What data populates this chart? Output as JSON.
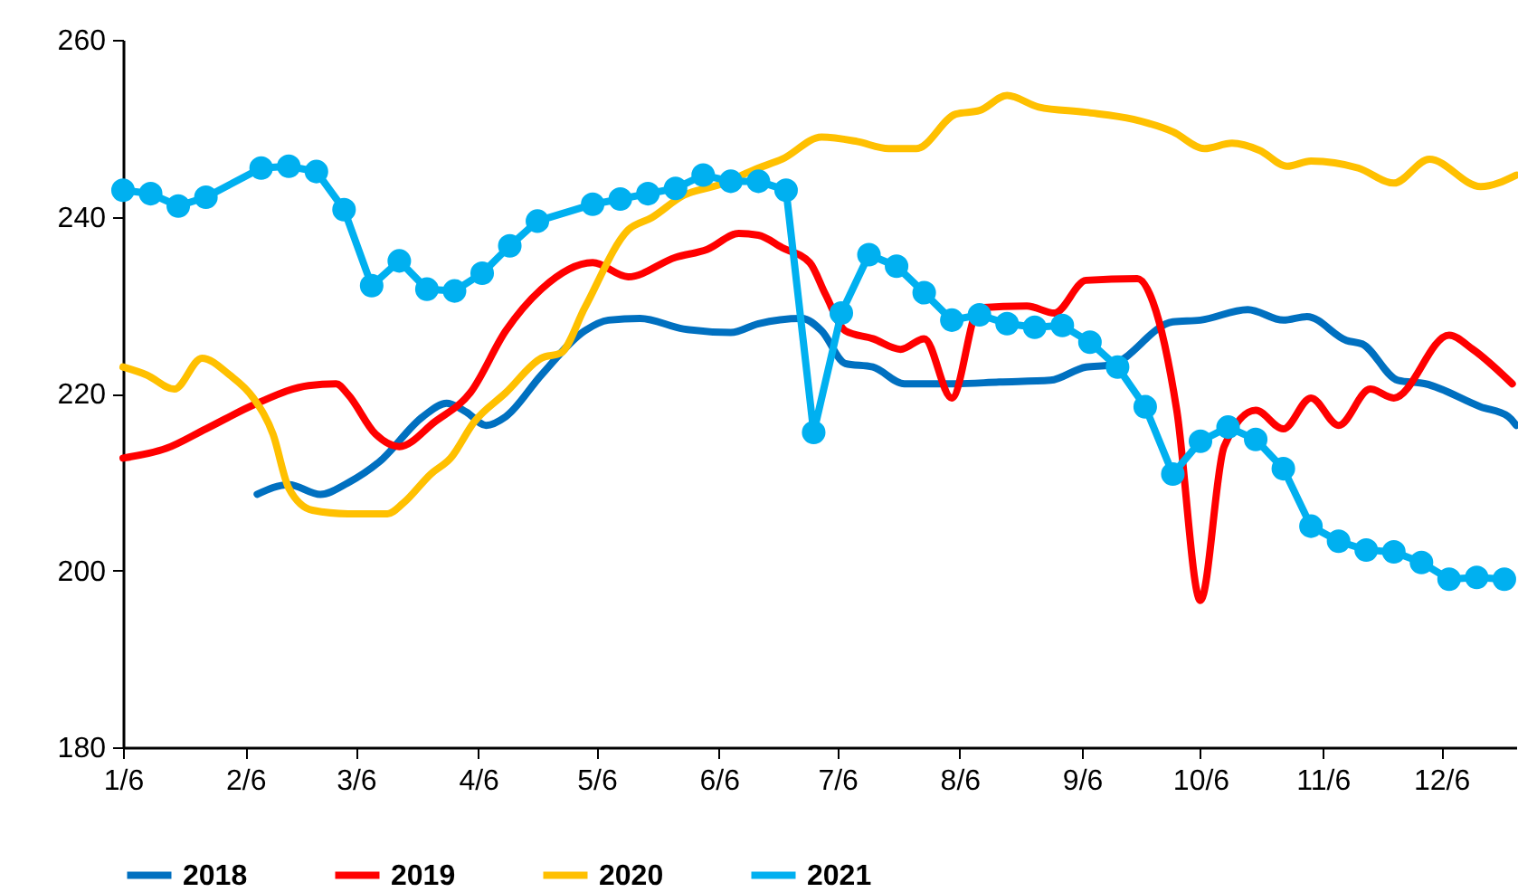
{
  "chart_data": {
    "type": "line",
    "xlim": [
      "--01-06",
      "--12-25"
    ],
    "ylim": [
      180,
      260
    ],
    "yticks": [
      180,
      200,
      220,
      240,
      260
    ],
    "xticks": [
      {
        "value": "--01-06",
        "label": "1/6"
      },
      {
        "value": "--02-06",
        "label": "2/6"
      },
      {
        "value": "--03-06",
        "label": "3/6"
      },
      {
        "value": "--04-06",
        "label": "4/6"
      },
      {
        "value": "--05-06",
        "label": "5/6"
      },
      {
        "value": "--06-06",
        "label": "6/6"
      },
      {
        "value": "--07-06",
        "label": "7/6"
      },
      {
        "value": "--08-06",
        "label": "8/6"
      },
      {
        "value": "--09-06",
        "label": "9/6"
      },
      {
        "value": "--10-06",
        "label": "10/6"
      },
      {
        "value": "--11-06",
        "label": "11/6"
      },
      {
        "value": "--12-06",
        "label": "12/6"
      }
    ],
    "legend": "bottom",
    "grid": false,
    "series": [
      {
        "name": "2018",
        "color": "#0070c0",
        "marker": "none",
        "x": [
          "--02-09",
          "--02-17",
          "--02-25",
          "--03-04",
          "--03-12",
          "--03-23",
          "--03-29",
          "--04-03",
          "--04-08",
          "--04-13",
          "--04-22",
          "--05-03",
          "--05-09",
          "--05-17",
          "--05-28",
          "--06-09",
          "--06-16",
          "--06-27",
          "--07-02",
          "--07-08",
          "--07-15",
          "--07-23",
          "--08-05",
          "--08-16",
          "--08-29",
          "--09-07",
          "--09-13",
          "--09-29",
          "--10-06",
          "--10-18",
          "--10-27",
          "--11-02",
          "--11-12",
          "--11-16",
          "--11-25",
          "--12-02",
          "--12-16",
          "--12-23",
          "--12-25"
        ],
        "values": [
          208.6,
          209.7,
          208.6,
          209.9,
          212.3,
          217.4,
          218.9,
          217.9,
          216.4,
          217.4,
          222.1,
          227.1,
          228.3,
          228.5,
          227.3,
          226.9,
          227.9,
          228.5,
          227.1,
          223.4,
          223.0,
          221.1,
          221.1,
          221.3,
          221.5,
          223.0,
          223.2,
          228.1,
          228.3,
          229.5,
          228.3,
          228.7,
          226.0,
          225.6,
          221.5,
          221.1,
          218.5,
          217.4,
          216.4
        ]
      },
      {
        "name": "2019",
        "color": "#ff0000",
        "marker": "none",
        "x": [
          "--01-06",
          "--01-17",
          "--01-27",
          "--02-09",
          "--02-22",
          "--03-01",
          "--03-04",
          "--03-11",
          "--03-17",
          "--03-26",
          "--04-04",
          "--04-13",
          "--04-22",
          "--05-05",
          "--05-14",
          "--05-26",
          "--06-03",
          "--06-11",
          "--06-16",
          "--06-22",
          "--06-29",
          "--07-03",
          "--07-08",
          "--07-15",
          "--07-22",
          "--07-28",
          "--08-04",
          "--08-11",
          "--08-23",
          "--08-30",
          "--09-07",
          "--09-20",
          "--09-24",
          "--09-30",
          "--10-06",
          "--10-12",
          "--10-20",
          "--10-27",
          "--11-03",
          "--11-10",
          "--11-18",
          "--11-24",
          "--12-08",
          "--12-14",
          "--12-24"
        ],
        "values": [
          212.7,
          213.8,
          216.0,
          218.9,
          220.9,
          221.1,
          219.9,
          215.4,
          214.0,
          216.8,
          220.1,
          227.1,
          231.8,
          234.8,
          233.2,
          235.4,
          236.3,
          238.1,
          237.9,
          236.5,
          234.8,
          231.2,
          227.1,
          226.2,
          225.0,
          226.2,
          219.5,
          229.7,
          229.9,
          229.1,
          232.8,
          233.0,
          230.3,
          218.1,
          196.6,
          214.0,
          218.1,
          216.0,
          219.5,
          216.4,
          220.5,
          219.5,
          226.6,
          225.0,
          221.1
        ]
      },
      {
        "name": "2020",
        "color": "#ffc000",
        "marker": "none",
        "x": [
          "--01-06",
          "--01-12",
          "--01-19",
          "--01-26",
          "--02-02",
          "--02-08",
          "--02-13",
          "--02-17",
          "--02-23",
          "--03-04",
          "--03-14",
          "--03-18",
          "--03-25",
          "--03-30",
          "--04-05",
          "--04-13",
          "--04-22",
          "--04-27",
          "--05-03",
          "--05-14",
          "--05-20",
          "--05-28",
          "--06-06",
          "--06-16",
          "--06-22",
          "--07-02",
          "--07-11",
          "--07-19",
          "--07-26",
          "--08-05",
          "--08-11",
          "--08-18",
          "--08-26",
          "--09-07",
          "--09-19",
          "--09-29",
          "--10-07",
          "--10-14",
          "--10-21",
          "--10-28",
          "--11-03",
          "--11-15",
          "--11-24",
          "--12-03",
          "--12-16",
          "--12-25"
        ],
        "values": [
          223.0,
          222.1,
          220.5,
          224.0,
          222.1,
          219.5,
          215.4,
          209.3,
          206.8,
          206.4,
          206.4,
          207.6,
          210.9,
          212.7,
          216.8,
          220.1,
          224.0,
          224.6,
          229.7,
          238.5,
          239.9,
          242.4,
          243.6,
          245.5,
          246.5,
          249.0,
          248.5,
          247.7,
          247.7,
          251.6,
          252.0,
          253.7,
          252.4,
          251.8,
          251.0,
          249.6,
          247.7,
          248.3,
          247.5,
          245.7,
          246.3,
          245.5,
          243.8,
          246.5,
          243.4,
          244.7
        ]
      },
      {
        "name": "2021",
        "color": "#00b0f0",
        "marker": "circle",
        "x": [
          "--01-06",
          "--01-13",
          "--01-20",
          "--01-27",
          "--02-10",
          "--02-17",
          "--02-24",
          "--03-03",
          "--03-10",
          "--03-17",
          "--03-24",
          "--03-31",
          "--04-07",
          "--04-14",
          "--04-21",
          "--05-05",
          "--05-12",
          "--05-19",
          "--05-26",
          "--06-02",
          "--06-09",
          "--06-16",
          "--06-23",
          "--06-30",
          "--07-07",
          "--07-14",
          "--07-21",
          "--07-28",
          "--08-04",
          "--08-11",
          "--08-18",
          "--08-25",
          "--09-01",
          "--09-08",
          "--09-15",
          "--09-22",
          "--09-29",
          "--10-06",
          "--10-13",
          "--10-20",
          "--10-27",
          "--11-03",
          "--11-10",
          "--11-17",
          "--11-24",
          "--12-01",
          "--12-08",
          "--12-15",
          "--12-22"
        ],
        "values": [
          243.0,
          242.6,
          241.2,
          242.2,
          245.5,
          245.7,
          245.1,
          240.8,
          232.2,
          235.0,
          231.8,
          231.6,
          233.6,
          236.7,
          239.5,
          241.4,
          242.0,
          242.6,
          243.2,
          244.7,
          244.0,
          244.0,
          243.0,
          215.6,
          229.1,
          235.7,
          234.4,
          231.4,
          228.3,
          228.9,
          227.9,
          227.5,
          227.7,
          225.8,
          223.0,
          218.5,
          210.9,
          214.6,
          216.2,
          214.8,
          211.5,
          205.0,
          203.3,
          202.3,
          202.1,
          200.9,
          199.0,
          199.2,
          199.0
        ]
      }
    ]
  }
}
